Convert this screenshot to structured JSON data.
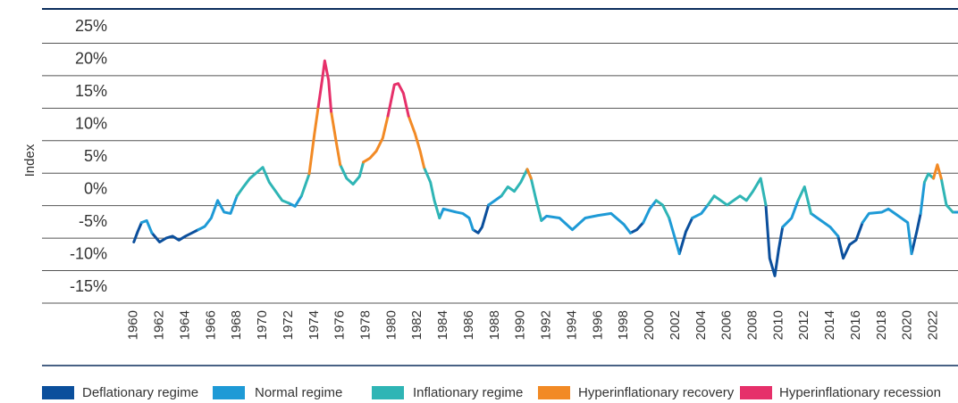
{
  "chart_data": {
    "type": "line",
    "ylabel": "Index",
    "x": [
      1960,
      1960.3,
      1960.6,
      1961,
      1961.4,
      1962,
      1962.5,
      1963,
      1963.5,
      1964,
      1964.5,
      1965,
      1965.5,
      1966,
      1966.5,
      1967,
      1967.5,
      1968,
      1968.5,
      1969,
      1970,
      1970.5,
      1971,
      1971.5,
      1972,
      1972.5,
      1973,
      1973.6,
      1974,
      1974.3,
      1974.6,
      1974.8,
      1975.1,
      1975.3,
      1975.7,
      1976,
      1976.5,
      1977,
      1977.5,
      1977.8,
      1978.3,
      1978.8,
      1979.3,
      1979.7,
      1980.2,
      1980.5,
      1980.9,
      1981.3,
      1981.8,
      1982.2,
      1982.5,
      1983,
      1983.3,
      1983.7,
      1984,
      1985,
      1985.5,
      1986,
      1986.3,
      1986.7,
      1987,
      1987.5,
      1988,
      1988.5,
      1989,
      1989.5,
      1990,
      1990.5,
      1990.8,
      1991.2,
      1991.6,
      1992,
      1993,
      1994,
      1995,
      1996,
      1997,
      1998,
      1998.5,
      1999,
      1999.5,
      2000,
      2000.5,
      2001,
      2001.5,
      2002,
      2002.3,
      2002.8,
      2003.3,
      2004,
      2004.5,
      2005,
      2006,
      2007,
      2007.5,
      2008,
      2008.6,
      2009,
      2009.3,
      2009.7,
      2010,
      2010.3,
      2011,
      2011.5,
      2012,
      2012.5,
      2013,
      2014,
      2014.6,
      2015,
      2015.5,
      2016,
      2016.5,
      2017,
      2018,
      2018.5,
      2019,
      2020,
      2020.3,
      2020.7,
      2021,
      2021.3,
      2021.6,
      2022,
      2022.3,
      2022.6,
      2023,
      2023.5,
      2023.9
    ],
    "series": [
      {
        "name": "Deflationary regime",
        "color": "#0b4f9c",
        "values": [
          -5.6,
          -4,
          -2.6,
          null,
          -4.2,
          -5.6,
          -5,
          -4.7,
          -5.3,
          -4.7,
          -4.2,
          -3.7,
          null,
          null,
          null,
          null,
          null,
          null,
          null,
          null,
          null,
          null,
          null,
          null,
          null,
          null,
          null,
          null,
          null,
          null,
          null,
          null,
          null,
          null,
          null,
          null,
          null,
          null,
          null,
          null,
          null,
          null,
          null,
          null,
          null,
          null,
          null,
          null,
          null,
          null,
          null,
          null,
          null,
          null,
          null,
          null,
          null,
          null,
          -3.7,
          -4.2,
          -3.3,
          0.1,
          null,
          null,
          null,
          null,
          null,
          null,
          null,
          null,
          null,
          null,
          null,
          null,
          null,
          null,
          null,
          null,
          -4.2,
          -3.7,
          -2.6,
          null,
          null,
          null,
          null,
          null,
          -7.4,
          -4,
          -1.9,
          null,
          null,
          null,
          null,
          null,
          null,
          null,
          null,
          0.1,
          -8.1,
          -10.8,
          -6.7,
          -3.3,
          null,
          null,
          null,
          null,
          null,
          null,
          -4.7,
          -8.1,
          -6,
          -5.3,
          -2.6,
          null,
          null,
          null,
          null,
          null,
          -7.4,
          -4,
          -1.2,
          null,
          null,
          null,
          null,
          null,
          null,
          null,
          null
        ]
      },
      {
        "name": "Normal regime",
        "color": "#1e9ad6",
        "values": [
          null,
          null,
          -2.6,
          -2.3,
          -4.2,
          null,
          null,
          null,
          null,
          null,
          null,
          -3.7,
          -3.2,
          -1.9,
          0.8,
          -1,
          -1.2,
          1.5,
          null,
          null,
          null,
          null,
          null,
          null,
          0.4,
          -0.1,
          1.5,
          null,
          null,
          null,
          null,
          null,
          null,
          null,
          null,
          null,
          null,
          null,
          null,
          null,
          null,
          null,
          null,
          null,
          null,
          null,
          null,
          null,
          null,
          null,
          null,
          null,
          null,
          -1.9,
          -0.5,
          -1,
          -1.2,
          -1.9,
          -3.7,
          null,
          null,
          0.1,
          0.8,
          1.5,
          null,
          null,
          null,
          null,
          null,
          null,
          -2.3,
          -1.6,
          -1.9,
          -3.7,
          -1.9,
          -1.5,
          -1.2,
          -2.9,
          -4.2,
          null,
          -2.6,
          -0.5,
          0.8,
          null,
          -1.9,
          -5.3,
          -7.4,
          null,
          -1.9,
          -1.2,
          0.1,
          null,
          null,
          null,
          null,
          null,
          null,
          null,
          null,
          null,
          null,
          -3.3,
          -1.9,
          0.8,
          null,
          -1.2,
          -1.9,
          -3.3,
          -4.7,
          null,
          null,
          null,
          -2.6,
          -1.2,
          -1,
          -0.5,
          -1.2,
          -2.6,
          -7.4,
          null,
          -1.2,
          3.6,
          null,
          null,
          null,
          null,
          null,
          -1,
          -1
        ]
      },
      {
        "name": "Inflationary regime",
        "color": "#2fb5b5",
        "values": [
          null,
          null,
          null,
          null,
          null,
          null,
          null,
          null,
          null,
          null,
          null,
          null,
          null,
          null,
          null,
          null,
          null,
          1.5,
          2.9,
          4.2,
          5.9,
          3.6,
          2.2,
          0.8,
          0.4,
          null,
          1.5,
          4.9,
          null,
          null,
          null,
          null,
          null,
          null,
          null,
          6.3,
          4.2,
          3.3,
          4.5,
          6.7,
          null,
          null,
          null,
          null,
          null,
          null,
          null,
          null,
          null,
          null,
          5.9,
          3.6,
          0.8,
          -1.9,
          null,
          null,
          null,
          null,
          null,
          null,
          null,
          null,
          null,
          1.5,
          2.9,
          2.2,
          3.6,
          5.6,
          4.2,
          0.8,
          -2.3,
          null,
          null,
          null,
          null,
          null,
          null,
          null,
          null,
          null,
          null,
          null,
          0.8,
          0.1,
          -1.9,
          null,
          null,
          null,
          null,
          null,
          0.1,
          1.5,
          0.1,
          1.5,
          0.8,
          2.2,
          4.2,
          0.1,
          null,
          null,
          null,
          null,
          null,
          0.8,
          2.9,
          -1.2,
          null,
          null,
          null,
          null,
          null,
          null,
          null,
          null,
          null,
          null,
          null,
          null,
          null,
          null,
          null,
          3.6,
          4.9,
          4.2,
          null,
          4.2,
          0.1,
          -1,
          null
        ]
      },
      {
        "name": "Hyperinflationary recovery",
        "color": "#f28a25",
        "values": [
          null,
          null,
          null,
          null,
          null,
          null,
          null,
          null,
          null,
          null,
          null,
          null,
          null,
          null,
          null,
          null,
          null,
          null,
          null,
          null,
          null,
          null,
          null,
          null,
          null,
          null,
          null,
          4.9,
          11,
          15.2,
          null,
          null,
          null,
          14.5,
          9.7,
          6.3,
          null,
          null,
          null,
          6.7,
          7.3,
          8.4,
          10.4,
          13.8,
          null,
          null,
          null,
          13.8,
          11.1,
          8.4,
          5.9,
          null,
          null,
          null,
          null,
          null,
          null,
          null,
          null,
          null,
          null,
          null,
          null,
          null,
          null,
          null,
          null,
          5.6,
          4.2,
          null,
          null,
          null,
          null,
          null,
          null,
          null,
          null,
          null,
          null,
          null,
          null,
          null,
          null,
          null,
          null,
          null,
          null,
          null,
          null,
          null,
          null,
          null,
          null,
          null,
          null,
          null,
          null,
          null,
          null,
          null,
          null,
          null,
          null,
          null,
          null,
          null,
          null,
          null,
          null,
          null,
          null,
          null,
          null,
          null,
          null,
          null,
          null,
          null,
          null,
          null,
          null,
          null,
          null,
          4.2,
          6.3,
          4.2,
          null,
          null,
          null
        ]
      },
      {
        "name": "Hyperinflationary recession",
        "color": "#e6306a",
        "values": [
          null,
          null,
          null,
          null,
          null,
          null,
          null,
          null,
          null,
          null,
          null,
          null,
          null,
          null,
          null,
          null,
          null,
          null,
          null,
          null,
          null,
          null,
          null,
          null,
          null,
          null,
          null,
          null,
          null,
          15.2,
          19.3,
          22.3,
          19.3,
          14.5,
          null,
          null,
          null,
          null,
          null,
          null,
          null,
          null,
          null,
          13.8,
          18.6,
          18.8,
          17.3,
          13.8,
          null,
          null,
          null,
          null,
          null,
          null,
          null,
          null,
          null,
          null,
          null,
          null,
          null,
          null,
          null,
          null,
          null,
          null,
          null,
          null,
          null,
          null,
          null,
          null,
          null,
          null,
          null,
          null,
          null,
          null,
          null,
          null,
          null,
          null,
          null,
          null,
          null,
          null,
          null,
          null,
          null,
          null,
          null,
          null,
          null,
          null,
          null,
          null,
          null,
          null,
          null,
          null,
          null,
          null,
          null,
          null,
          null,
          null,
          null,
          null,
          null,
          null,
          null,
          null,
          null,
          null,
          null,
          null,
          null,
          null,
          null,
          null,
          null,
          null,
          null,
          null,
          null,
          null,
          null,
          null,
          null
        ]
      }
    ],
    "xlim": [
      1957.8,
      2023.9
    ],
    "xticks": [
      1960,
      1962,
      1964,
      1966,
      1968,
      1970,
      1972,
      1974,
      1976,
      1978,
      1980,
      1982,
      1984,
      1986,
      1988,
      1990,
      1992,
      1994,
      1996,
      1998,
      2000,
      2002,
      2004,
      2006,
      2008,
      2010,
      2012,
      2014,
      2016,
      2018,
      2020,
      2022
    ],
    "ylim": [
      -15,
      30
    ],
    "yticks": [
      {
        "value": -15,
        "label": "-15%"
      },
      {
        "value": -10,
        "label": "-10%"
      },
      {
        "value": -5,
        "label": "-5%"
      },
      {
        "value": 0,
        "label": "0%"
      },
      {
        "value": 5,
        "label": "5%"
      },
      {
        "value": 10,
        "label": "10%"
      },
      {
        "value": 15,
        "label": "15%"
      },
      {
        "value": 20,
        "label": "20%"
      },
      {
        "value": 25,
        "label": "25%"
      }
    ],
    "grid": true,
    "legend": "bottom"
  }
}
